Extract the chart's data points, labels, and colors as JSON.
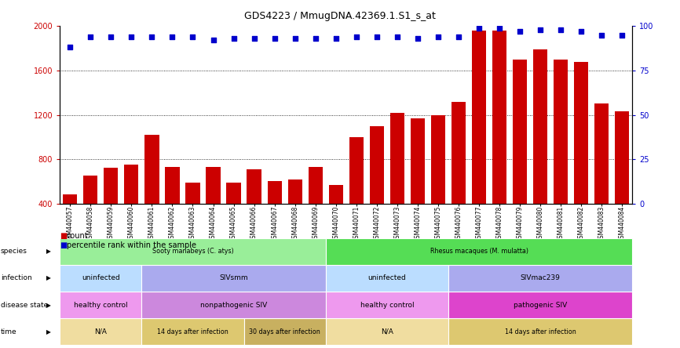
{
  "title": "GDS4223 / MmugDNA.42369.1.S1_s_at",
  "gsm_labels": [
    "GSM440057",
    "GSM440058",
    "GSM440059",
    "GSM440060",
    "GSM440061",
    "GSM440062",
    "GSM440063",
    "GSM440064",
    "GSM440065",
    "GSM440066",
    "GSM440067",
    "GSM440068",
    "GSM440069",
    "GSM440070",
    "GSM440071",
    "GSM440072",
    "GSM440073",
    "GSM440074",
    "GSM440075",
    "GSM440076",
    "GSM440077",
    "GSM440078",
    "GSM440079",
    "GSM440080",
    "GSM440081",
    "GSM440082",
    "GSM440083",
    "GSM440084"
  ],
  "bar_values": [
    480,
    650,
    720,
    750,
    1020,
    730,
    590,
    730,
    590,
    710,
    600,
    620,
    730,
    570,
    1000,
    1100,
    1220,
    1170,
    1200,
    1320,
    1960,
    1960,
    1700,
    1790,
    1700,
    1680,
    1300,
    1230
  ],
  "percentile_values": [
    88,
    94,
    94,
    94,
    94,
    94,
    94,
    92,
    93,
    93,
    93,
    93,
    93,
    93,
    94,
    94,
    94,
    93,
    94,
    94,
    99,
    99,
    97,
    98,
    98,
    97,
    95,
    95
  ],
  "bar_color": "#cc0000",
  "percentile_color": "#0000cc",
  "ylim_left": [
    400,
    2000
  ],
  "ylim_right": [
    0,
    100
  ],
  "yticks_left": [
    400,
    800,
    1200,
    1600,
    2000
  ],
  "yticks_right": [
    0,
    25,
    50,
    75,
    100
  ],
  "grid_values": [
    800,
    1200,
    1600
  ],
  "annotation_rows": [
    {
      "label": "species",
      "segments": [
        {
          "text": "Sooty manabeys (C. atys)",
          "start": 0,
          "end": 13,
          "color": "#99ee99"
        },
        {
          "text": "Rhesus macaques (M. mulatta)",
          "start": 13,
          "end": 28,
          "color": "#55dd55"
        }
      ]
    },
    {
      "label": "infection",
      "segments": [
        {
          "text": "uninfected",
          "start": 0,
          "end": 4,
          "color": "#bbddff"
        },
        {
          "text": "SIVsmm",
          "start": 4,
          "end": 13,
          "color": "#aaaaee"
        },
        {
          "text": "uninfected",
          "start": 13,
          "end": 19,
          "color": "#bbddff"
        },
        {
          "text": "SIVmac239",
          "start": 19,
          "end": 28,
          "color": "#aaaaee"
        }
      ]
    },
    {
      "label": "disease state",
      "segments": [
        {
          "text": "healthy control",
          "start": 0,
          "end": 4,
          "color": "#ee99ee"
        },
        {
          "text": "nonpathogenic SIV",
          "start": 4,
          "end": 13,
          "color": "#cc88dd"
        },
        {
          "text": "healthy control",
          "start": 13,
          "end": 19,
          "color": "#ee99ee"
        },
        {
          "text": "pathogenic SIV",
          "start": 19,
          "end": 28,
          "color": "#dd44cc"
        }
      ]
    },
    {
      "label": "time",
      "segments": [
        {
          "text": "N/A",
          "start": 0,
          "end": 4,
          "color": "#f0dda0"
        },
        {
          "text": "14 days after infection",
          "start": 4,
          "end": 9,
          "color": "#ddc870"
        },
        {
          "text": "30 days after infection",
          "start": 9,
          "end": 13,
          "color": "#c8b060"
        },
        {
          "text": "N/A",
          "start": 13,
          "end": 19,
          "color": "#f0dda0"
        },
        {
          "text": "14 days after infection",
          "start": 19,
          "end": 28,
          "color": "#ddc870"
        }
      ]
    }
  ]
}
